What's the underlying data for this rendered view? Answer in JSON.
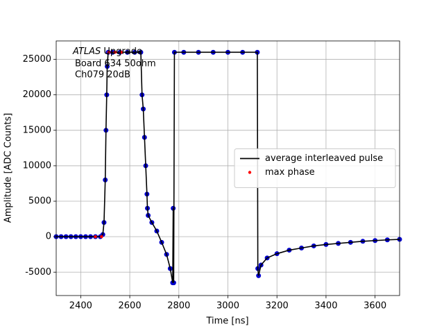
{
  "chart_data": {
    "type": "line",
    "xlabel": "Time [ns]",
    "ylabel": "Amplitude [ADC Counts]",
    "annotation": {
      "italic": "ATLAS",
      "text": " Upgrade",
      "lines": [
        "Board 634 50ohm",
        "Ch079 20dB"
      ]
    },
    "xlim": [
      2300,
      3700
    ],
    "ylim": [
      -8300,
      27600
    ],
    "xticks": [
      2400,
      2600,
      2800,
      3000,
      3200,
      3400,
      3600
    ],
    "yticks": [
      -5000,
      0,
      5000,
      10000,
      15000,
      20000,
      25000
    ],
    "grid": true,
    "legend_loc": "center right",
    "series": [
      {
        "name": "average interleaved pulse",
        "style": "line",
        "color": "#000000",
        "marker_color": "#0000cc",
        "x": [
          2300,
          2320,
          2340,
          2360,
          2380,
          2400,
          2420,
          2440,
          2460,
          2480,
          2490,
          2495,
          2500,
          2503,
          2506,
          2508,
          2512,
          2530,
          2560,
          2590,
          2620,
          2645,
          2650,
          2655,
          2660,
          2665,
          2670,
          2672,
          2675,
          2690,
          2710,
          2730,
          2750,
          2765,
          2775,
          2777,
          2779,
          2782,
          2820,
          2880,
          2940,
          3000,
          3060,
          3120,
          3122,
          3125,
          3135,
          3160,
          3200,
          3250,
          3300,
          3350,
          3400,
          3450,
          3500,
          3550,
          3600,
          3650,
          3700
        ],
        "values": [
          0,
          0,
          0,
          0,
          0,
          0,
          0,
          0,
          0,
          0,
          300,
          2000,
          8000,
          15000,
          20000,
          24000,
          26000,
          26000,
          26000,
          26000,
          26000,
          26000,
          20000,
          18000,
          14000,
          10000,
          6000,
          4000,
          3000,
          2000,
          800,
          -800,
          -2500,
          -4500,
          -6500,
          4000,
          -6500,
          26000,
          26000,
          26000,
          26000,
          26000,
          26000,
          26000,
          -4500,
          -5500,
          -4000,
          -3000,
          -2400,
          -1900,
          -1600,
          -1300,
          -1100,
          -950,
          -800,
          -650,
          -550,
          -450,
          -380
        ]
      },
      {
        "name": "max phase",
        "style": "points",
        "color": "#ff0000",
        "x": [
          2460,
          2485,
          2515,
          2540,
          2565
        ],
        "values": [
          0,
          0,
          26000,
          26000,
          26000
        ]
      }
    ]
  }
}
